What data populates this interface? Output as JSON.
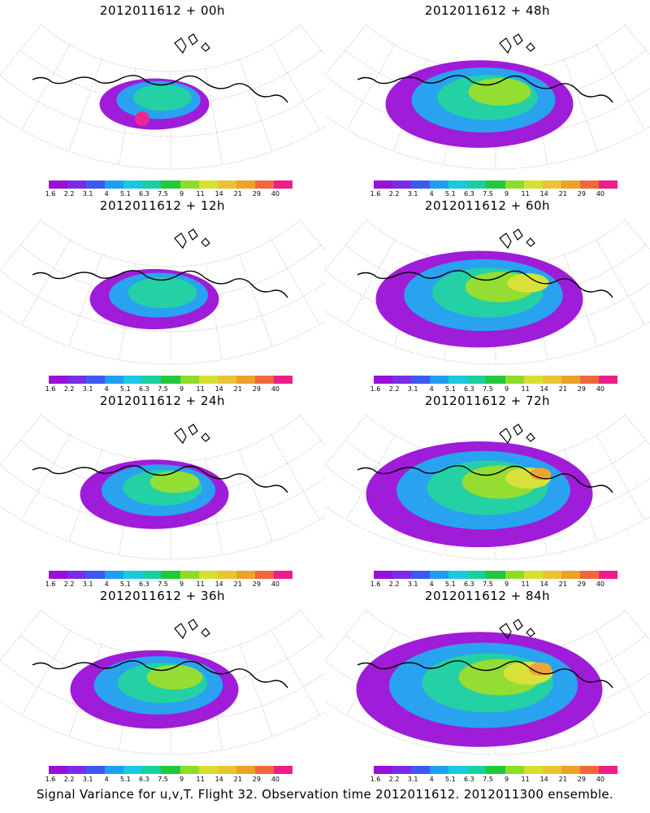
{
  "panels": [
    {
      "title": "2012011612 + 00h",
      "level": 0
    },
    {
      "title": "2012011612 + 48h",
      "level": 4
    },
    {
      "title": "2012011612 + 12h",
      "level": 1
    },
    {
      "title": "2012011612 + 60h",
      "level": 5
    },
    {
      "title": "2012011612 + 24h",
      "level": 2
    },
    {
      "title": "2012011612 + 72h",
      "level": 6
    },
    {
      "title": "2012011612 + 36h",
      "level": 3
    },
    {
      "title": "2012011612 + 84h",
      "level": 7
    }
  ],
  "colorbar": {
    "labels": [
      "1.6",
      "2.2",
      "3.1",
      "4",
      "5.1",
      "6.3",
      "7.5",
      "9",
      "11",
      "14",
      "21",
      "29",
      "40"
    ],
    "colors": [
      "#9a10d8",
      "#7a2ce8",
      "#3d5af0",
      "#1e9ef0",
      "#1ac8e0",
      "#18cfa0",
      "#22c83a",
      "#8fdc28",
      "#d6e030",
      "#e8c430",
      "#eea028",
      "#f0683a",
      "#ec1e8a"
    ]
  },
  "footer": "Signal Variance for u,v,T. Flight 32. Observation time 2012011612. 2012011300 ensemble."
}
